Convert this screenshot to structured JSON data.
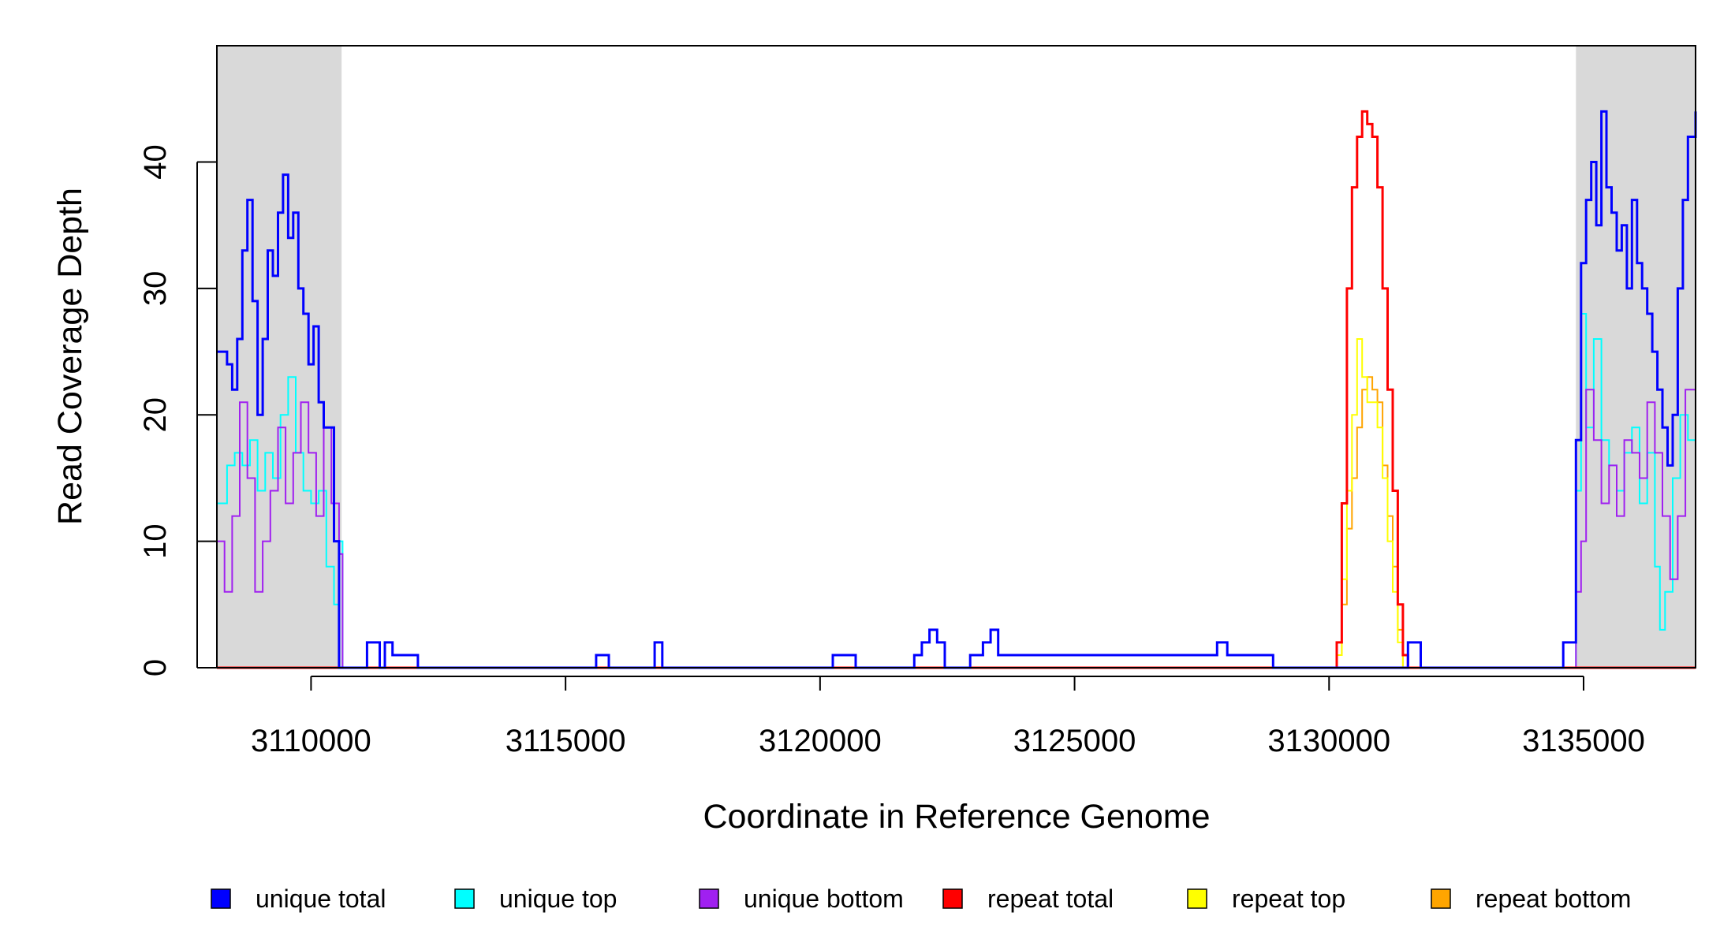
{
  "chart_data": {
    "type": "line",
    "title": "",
    "xlabel": "Coordinate in Reference Genome",
    "ylabel": "Read Coverage Depth",
    "xlim": [
      3108150,
      3137200
    ],
    "ylim": [
      0,
      49.2
    ],
    "x_ticks": [
      3110000,
      3115000,
      3120000,
      3125000,
      3130000,
      3135000
    ],
    "y_ticks": [
      0,
      10,
      20,
      30,
      40
    ],
    "shaded_regions": [
      {
        "from": 3108150,
        "to": 3110600,
        "color": "#d9d9d9"
      },
      {
        "from": 3134850,
        "to": 3137200,
        "color": "#d9d9d9"
      }
    ],
    "grid": false,
    "legend_position": "bottom",
    "series": [
      {
        "name": "unique total",
        "color": "#0000ff",
        "x": [
          3108150,
          3108350,
          3108450,
          3108550,
          3108650,
          3108750,
          3108850,
          3108950,
          3109050,
          3109150,
          3109250,
          3109350,
          3109450,
          3109550,
          3109650,
          3109750,
          3109850,
          3109950,
          3110050,
          3110150,
          3110250,
          3110350,
          3110450,
          3110550,
          3110620,
          3111100,
          3111350,
          3111450,
          3111600,
          3111750,
          3112100,
          3115600,
          3115850,
          3116750,
          3116900,
          3120250,
          3120700,
          3121850,
          3122000,
          3122150,
          3122300,
          3122450,
          3122950,
          3123200,
          3123350,
          3123500,
          3127800,
          3128000,
          3128350,
          3128650,
          3128900,
          3129150,
          3130100,
          3131550,
          3131800,
          3134600,
          3134850,
          3134950,
          3135050,
          3135150,
          3135250,
          3135350,
          3135450,
          3135550,
          3135650,
          3135750,
          3135850,
          3135950,
          3136050,
          3136150,
          3136250,
          3136350,
          3136450,
          3136550,
          3136650,
          3136750,
          3136850,
          3136950,
          3137050,
          3137200
        ],
        "values": [
          25,
          24,
          22,
          26,
          33,
          37,
          29,
          20,
          26,
          33,
          31,
          36,
          39,
          34,
          36,
          30,
          28,
          24,
          27,
          21,
          19,
          19,
          10,
          0,
          0,
          2,
          0,
          2,
          1,
          1,
          0,
          1,
          0,
          2,
          0,
          1,
          0,
          1,
          2,
          3,
          2,
          0,
          1,
          2,
          3,
          1,
          2,
          1,
          1,
          1,
          0,
          0,
          0,
          2,
          0,
          2,
          18,
          32,
          37,
          40,
          35,
          44,
          38,
          36,
          33,
          35,
          30,
          37,
          32,
          30,
          28,
          25,
          22,
          19,
          16,
          20,
          30,
          37,
          42,
          44
        ]
      },
      {
        "name": "unique top",
        "color": "#00ffff",
        "x": [
          3108150,
          3108350,
          3108500,
          3108650,
          3108800,
          3108950,
          3109100,
          3109250,
          3109400,
          3109550,
          3109700,
          3109850,
          3110000,
          3110150,
          3110300,
          3110450,
          3110550,
          3110620,
          3134850,
          3134950,
          3135050,
          3135200,
          3135350,
          3135500,
          3135650,
          3135800,
          3135950,
          3136100,
          3136250,
          3136400,
          3136500,
          3136600,
          3136750,
          3136900,
          3137050,
          3137200
        ],
        "values": [
          13,
          16,
          17,
          16,
          18,
          14,
          17,
          15,
          20,
          23,
          17,
          14,
          13,
          14,
          8,
          5,
          10,
          0,
          14,
          28,
          19,
          26,
          18,
          16,
          14,
          17,
          19,
          13,
          17,
          8,
          3,
          6,
          15,
          20,
          18,
          18
        ]
      },
      {
        "name": "unique bottom",
        "color": "#a020f0",
        "x": [
          3108150,
          3108300,
          3108450,
          3108600,
          3108750,
          3108900,
          3109050,
          3109200,
          3109350,
          3109500,
          3109650,
          3109800,
          3109950,
          3110100,
          3110250,
          3110400,
          3110550,
          3110620,
          3134850,
          3134950,
          3135050,
          3135200,
          3135350,
          3135500,
          3135650,
          3135800,
          3135950,
          3136100,
          3136250,
          3136400,
          3136550,
          3136700,
          3136850,
          3137000,
          3137200
        ],
        "values": [
          10,
          6,
          12,
          21,
          15,
          6,
          10,
          14,
          19,
          13,
          17,
          21,
          17,
          12,
          19,
          13,
          9,
          0,
          6,
          10,
          22,
          18,
          13,
          16,
          12,
          18,
          17,
          15,
          21,
          17,
          12,
          7,
          12,
          22,
          21
        ]
      },
      {
        "name": "repeat total",
        "color": "#ff0000",
        "x": [
          3108150,
          3130050,
          3130150,
          3130250,
          3130350,
          3130450,
          3130550,
          3130650,
          3130750,
          3130850,
          3130950,
          3131050,
          3131150,
          3131250,
          3131350,
          3131450,
          3131550,
          3137200
        ],
        "values": [
          0,
          0,
          2,
          13,
          30,
          38,
          42,
          44,
          43,
          42,
          38,
          30,
          22,
          14,
          5,
          1,
          0,
          0
        ]
      },
      {
        "name": "repeat top",
        "color": "#ffff00",
        "x": [
          3108150,
          3130050,
          3130150,
          3130250,
          3130350,
          3130450,
          3130550,
          3130650,
          3130750,
          3130850,
          3130950,
          3131050,
          3131150,
          3131250,
          3131350,
          3131450,
          3131550,
          3137200
        ],
        "values": [
          0,
          0,
          1,
          7,
          14,
          20,
          26,
          23,
          21,
          21,
          19,
          15,
          10,
          6,
          2,
          0,
          0,
          0
        ]
      },
      {
        "name": "repeat bottom",
        "color": "#ffa500",
        "x": [
          3108150,
          3130050,
          3130150,
          3130250,
          3130350,
          3130450,
          3130550,
          3130650,
          3130750,
          3130850,
          3130950,
          3131050,
          3131150,
          3131250,
          3131350,
          3131450,
          3131550,
          3137200
        ],
        "values": [
          0,
          0,
          1,
          5,
          11,
          15,
          19,
          22,
          23,
          22,
          21,
          16,
          12,
          8,
          3,
          0,
          0,
          0
        ]
      }
    ]
  }
}
